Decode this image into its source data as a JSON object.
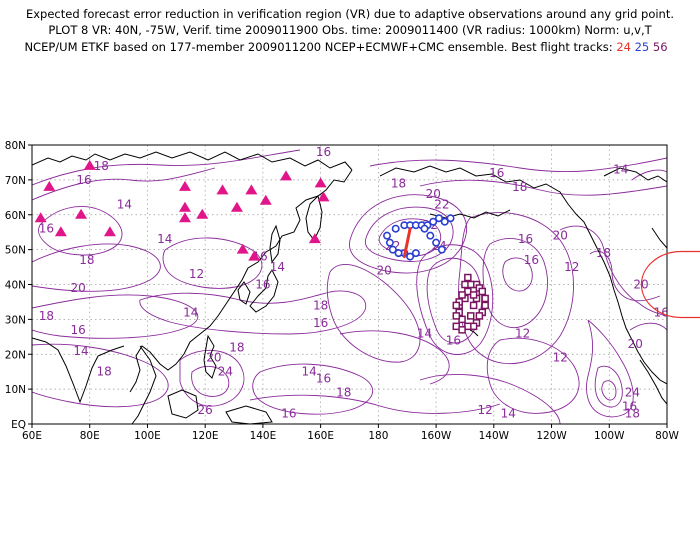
{
  "title": {
    "line1": "Expected forecast error reduction in verification region (VR) due to adaptive observations around any grid point.",
    "line2": "PLOT 8 VR: 40N, -75W, Verif. time 2009011900 Obs. time: 2009011400 (VR radius: 1000km) Norm: u,v,T",
    "line3_prefix": "NCEP/UM ETKF based on 177-member 2009011200 NCEP+ECMWF+CMC ensemble. Best flight tracks:",
    "track_a": "24",
    "track_b": "25",
    "track_c": "56"
  },
  "colors": {
    "contour": "#8a2b9a",
    "track_24": "#e8322c",
    "track_25": "#2a3fd0",
    "track_56": "#7a1460",
    "triangle": "#e0158a",
    "verification_circle": "#e8322c"
  },
  "axes": {
    "lon_ticks": [
      "60E",
      "80E",
      "100E",
      "120E",
      "140E",
      "160E",
      "180",
      "160W",
      "140W",
      "120W",
      "100W",
      "80W"
    ],
    "lat_ticks": [
      "EQ",
      "10N",
      "20N",
      "30N",
      "40N",
      "50N",
      "60N",
      "70N",
      "80N"
    ]
  },
  "contour_labels": [
    {
      "t": "16",
      "lon": 161,
      "lat": 78
    },
    {
      "t": "18",
      "lon": 84,
      "lat": 74
    },
    {
      "t": "16",
      "lon": 78,
      "lat": 70
    },
    {
      "t": "14",
      "lon": 92,
      "lat": 63
    },
    {
      "t": "16",
      "lon": 65,
      "lat": 56
    },
    {
      "t": "14",
      "lon": 106,
      "lat": 53
    },
    {
      "t": "18",
      "lon": 79,
      "lat": 47
    },
    {
      "t": "20",
      "lon": 76,
      "lat": 39
    },
    {
      "t": "18",
      "lon": 65,
      "lat": 31
    },
    {
      "t": "16",
      "lon": 76,
      "lat": 27
    },
    {
      "t": "14",
      "lon": 77,
      "lat": 21
    },
    {
      "t": "18",
      "lon": 85,
      "lat": 15
    },
    {
      "t": "12",
      "lon": 117,
      "lat": 43
    },
    {
      "t": "14",
      "lon": 115,
      "lat": 32
    },
    {
      "t": "16",
      "lon": 139,
      "lat": 48
    },
    {
      "t": "14",
      "lon": 145,
      "lat": 45
    },
    {
      "t": "16",
      "lon": 140,
      "lat": 40
    },
    {
      "t": "18",
      "lon": 160,
      "lat": 34
    },
    {
      "t": "16",
      "lon": 160,
      "lat": 29
    },
    {
      "t": "18",
      "lon": 131,
      "lat": 22
    },
    {
      "t": "20",
      "lon": 123,
      "lat": 19
    },
    {
      "t": "24",
      "lon": 127,
      "lat": 15
    },
    {
      "t": "26",
      "lon": 120,
      "lat": 4
    },
    {
      "t": "14",
      "lon": 156,
      "lat": 15
    },
    {
      "t": "16",
      "lon": 161,
      "lat": 13
    },
    {
      "t": "18",
      "lon": 168,
      "lat": 9
    },
    {
      "t": "16",
      "lon": 149,
      "lat": 3
    },
    {
      "t": "20",
      "lon": 182,
      "lat": 44
    },
    {
      "t": "18",
      "lon": 187,
      "lat": 69
    },
    {
      "t": "20",
      "lon": 199,
      "lat": 66
    },
    {
      "t": "22",
      "lon": 202,
      "lat": 63
    },
    {
      "t": "22",
      "lon": 198,
      "lat": 57
    },
    {
      "t": "24",
      "lon": 201,
      "lat": 51
    },
    {
      "t": "22",
      "lon": 185,
      "lat": 51
    },
    {
      "t": "16",
      "lon": 221,
      "lat": 72
    },
    {
      "t": "18",
      "lon": 229,
      "lat": 68
    },
    {
      "t": "16",
      "lon": 231,
      "lat": 53
    },
    {
      "t": "20",
      "lon": 243,
      "lat": 54
    },
    {
      "t": "16",
      "lon": 233,
      "lat": 47
    },
    {
      "t": "14",
      "lon": 196,
      "lat": 26
    },
    {
      "t": "16",
      "lon": 206,
      "lat": 24
    },
    {
      "t": "12",
      "lon": 230,
      "lat": 26
    },
    {
      "t": "12",
      "lon": 243,
      "lat": 19
    },
    {
      "t": "12",
      "lon": 247,
      "lat": 45
    },
    {
      "t": "12",
      "lon": 217,
      "lat": 4
    },
    {
      "t": "14",
      "lon": 225,
      "lat": 3
    },
    {
      "t": "14",
      "lon": 264,
      "lat": 73
    },
    {
      "t": "18",
      "lon": 258,
      "lat": 49
    },
    {
      "t": "20",
      "lon": 271,
      "lat": 40
    },
    {
      "t": "16",
      "lon": 278,
      "lat": 32
    },
    {
      "t": "20",
      "lon": 269,
      "lat": 23
    },
    {
      "t": "24",
      "lon": 268,
      "lat": 9
    },
    {
      "t": "16",
      "lon": 267,
      "lat": 5
    },
    {
      "t": "18",
      "lon": 268,
      "lat": 3
    }
  ],
  "triangles": [
    [
      66,
      68
    ],
    [
      80,
      74
    ],
    [
      113,
      68
    ],
    [
      126,
      67
    ],
    [
      136,
      67
    ],
    [
      148,
      71
    ],
    [
      160,
      69
    ],
    [
      63,
      59
    ],
    [
      77,
      60
    ],
    [
      70,
      55
    ],
    [
      87,
      55
    ],
    [
      113,
      62
    ],
    [
      119,
      60
    ],
    [
      131,
      62
    ],
    [
      141,
      64
    ],
    [
      161,
      65
    ],
    [
      113,
      59
    ],
    [
      133,
      50
    ],
    [
      137,
      48
    ],
    [
      158,
      53
    ]
  ],
  "track_25_points": [
    [
      183,
      54
    ],
    [
      184,
      52
    ],
    [
      185,
      50
    ],
    [
      186,
      56
    ],
    [
      189,
      57
    ],
    [
      191,
      57
    ],
    [
      193,
      57
    ],
    [
      195,
      57
    ],
    [
      197,
      57
    ],
    [
      199,
      58
    ],
    [
      201,
      59
    ],
    [
      203,
      58
    ],
    [
      205,
      59
    ],
    [
      196,
      56
    ],
    [
      198,
      54
    ],
    [
      200,
      52
    ],
    [
      202,
      50
    ],
    [
      193,
      49
    ],
    [
      191,
      48
    ],
    [
      189,
      49
    ],
    [
      187,
      49
    ]
  ],
  "track_24_segment": [
    [
      189,
      48
    ],
    [
      191,
      56
    ]
  ],
  "track_56_points": [
    [
      214,
      40
    ],
    [
      215,
      39
    ],
    [
      216,
      38
    ],
    [
      217,
      36
    ],
    [
      217,
      34
    ],
    [
      216,
      32
    ],
    [
      215,
      31
    ],
    [
      214,
      29
    ],
    [
      213,
      28
    ],
    [
      211,
      28
    ],
    [
      209,
      30
    ],
    [
      208,
      32
    ],
    [
      208,
      34
    ],
    [
      210,
      36
    ],
    [
      211,
      38
    ],
    [
      212,
      40
    ],
    [
      211,
      42
    ],
    [
      210,
      40
    ],
    [
      209,
      37
    ],
    [
      208,
      35
    ],
    [
      207,
      34
    ],
    [
      207,
      31
    ],
    [
      207,
      28
    ],
    [
      209,
      27
    ],
    [
      212,
      31
    ],
    [
      213,
      34
    ],
    [
      214,
      36
    ],
    [
      213,
      37
    ]
  ],
  "verification_region": {
    "lat": 40,
    "lon": -75,
    "radius_km": 1000
  }
}
